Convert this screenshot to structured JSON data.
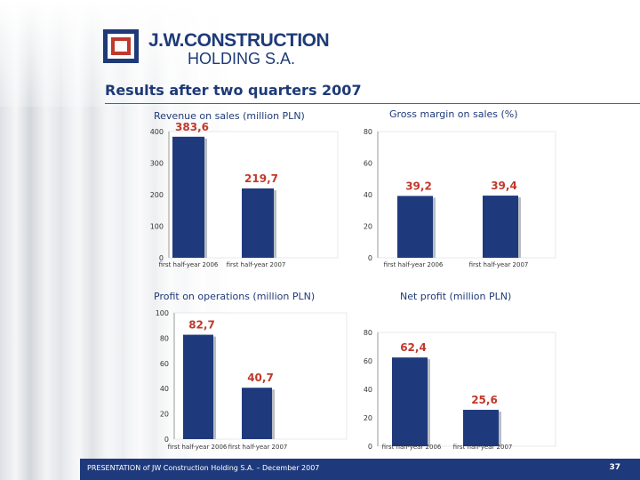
{
  "company": {
    "line1": "J.W.CONSTRUCTION",
    "line2": "HOLDING S.A."
  },
  "page_title": "Results after two quarters 2007",
  "footer": {
    "text": "PRESENTATION of JW Construction Holding S.A. – December 2007",
    "page": "37"
  },
  "colors": {
    "bar": "#1f3a7c",
    "value_label": "#c0392b",
    "title": "#1e3a78",
    "footer_bg": "#1f3a7c"
  },
  "chart_data": [
    {
      "type": "bar",
      "title": "Revenue on sales (million PLN)",
      "categories": [
        "first half-year 2006",
        "first half-year 2007"
      ],
      "values": [
        383.6,
        219.7
      ],
      "value_labels": [
        "383,6",
        "219,7"
      ],
      "yticks": [
        "400",
        "300",
        "200",
        "100",
        "0"
      ],
      "ylim": [
        0,
        400
      ],
      "grid": false
    },
    {
      "type": "bar",
      "title": "Gross margin on sales (%)",
      "categories": [
        "first half-year 2006",
        "first half-year 2007"
      ],
      "values": [
        39.2,
        39.4
      ],
      "value_labels": [
        "39,2",
        "39,4"
      ],
      "yticks": [
        "80",
        "60",
        "40",
        "20",
        "0"
      ],
      "ylim": [
        0,
        80
      ],
      "grid": false
    },
    {
      "type": "bar",
      "title": "Profit on operations (million PLN)",
      "categories": [
        "first half-year 2006",
        "first half-year 2007"
      ],
      "values": [
        82.7,
        40.7
      ],
      "value_labels": [
        "82,7",
        "40,7"
      ],
      "yticks": [
        "100",
        "80",
        "60",
        "40",
        "20",
        "0"
      ],
      "ylim": [
        0,
        100
      ],
      "grid": false
    },
    {
      "type": "bar",
      "title": "Net profit (million PLN)",
      "categories": [
        "first half-year 2006",
        "first half-year 2007"
      ],
      "values": [
        62.4,
        25.6
      ],
      "value_labels": [
        "62,4",
        "25,6"
      ],
      "yticks": [
        "80",
        "60",
        "40",
        "20",
        "0"
      ],
      "ylim": [
        0,
        80
      ],
      "grid": false
    }
  ]
}
